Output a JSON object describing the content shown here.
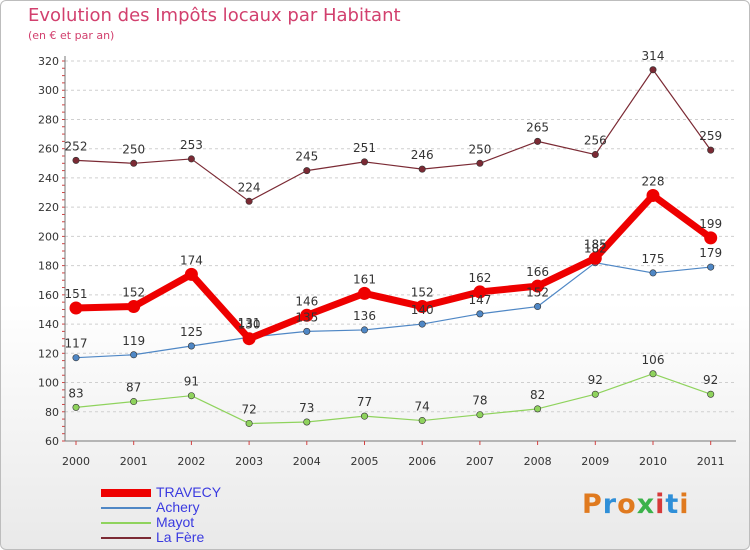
{
  "title": "Evolution des Impôts locaux par Habitant",
  "subtitle": "(en € et par an)",
  "logo": {
    "text": "Proxiti",
    "colors": [
      "#e07a1f",
      "#2f8fd8",
      "#e07a1f",
      "#3bb24a",
      "#d63a3a",
      "#2f8fd8",
      "#e07a1f"
    ]
  },
  "chart_data": {
    "type": "line",
    "x": [
      "2000",
      "2001",
      "2002",
      "2003",
      "2004",
      "2005",
      "2006",
      "2007",
      "2008",
      "2009",
      "2010",
      "2011"
    ],
    "y_ticks": [
      "60",
      "80",
      "100",
      "120",
      "140",
      "160",
      "180",
      "200",
      "220",
      "240",
      "260",
      "280",
      "300",
      "320"
    ],
    "ylim": [
      60,
      320
    ],
    "grid": "horizontal dashed",
    "legend_position": "bottom-left",
    "series": [
      {
        "name": "TRAVECY",
        "color": "#ee0000",
        "values": [
          151,
          152,
          174,
          130,
          146,
          161,
          152,
          162,
          166,
          185,
          228,
          199
        ],
        "labels": [
          "151",
          "152",
          "174",
          "130",
          "146",
          "161",
          "152",
          "162",
          "166",
          "185",
          "228",
          "199"
        ]
      },
      {
        "name": "Achery",
        "color": "#4f87c5",
        "values": [
          117,
          119,
          125,
          131,
          135,
          136,
          140,
          147,
          152,
          182,
          175,
          179
        ],
        "labels": [
          "117",
          "119",
          "125",
          "131",
          "135",
          "136",
          "140",
          "147",
          "152",
          "182",
          "175",
          "179"
        ]
      },
      {
        "name": "Mayot",
        "color": "#8fd35d",
        "values": [
          83,
          87,
          91,
          72,
          73,
          77,
          74,
          78,
          82,
          92,
          106,
          92
        ],
        "labels": [
          "83",
          "87",
          "91",
          "72",
          "73",
          "77",
          "74",
          "78",
          "82",
          "92",
          "106",
          "92"
        ]
      },
      {
        "name": "La Fère",
        "color": "#7b2a34",
        "values": [
          252,
          250,
          253,
          224,
          245,
          251,
          246,
          250,
          265,
          256,
          314,
          259
        ],
        "labels": [
          "252",
          "250",
          "253",
          "224",
          "245",
          "251",
          "246",
          "250",
          "265",
          "256",
          "314",
          "259"
        ]
      }
    ]
  }
}
